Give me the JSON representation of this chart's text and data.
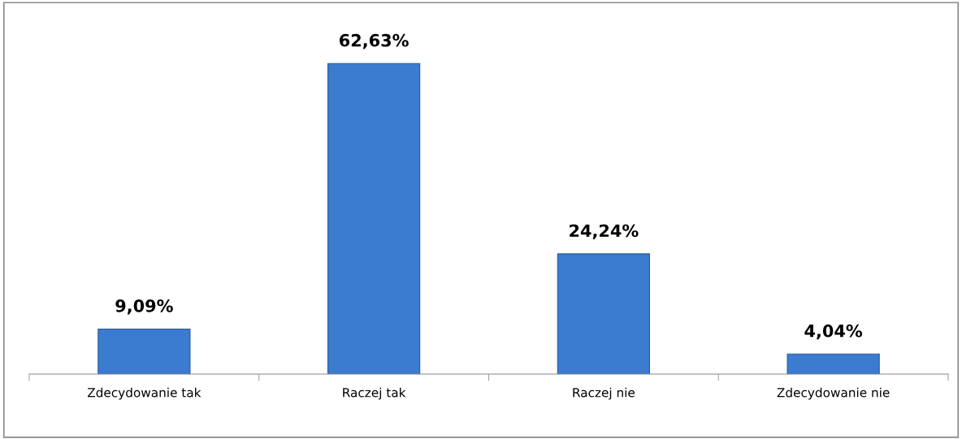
{
  "chart_data": {
    "type": "bar",
    "categories": [
      "Zdecydowanie tak",
      "Raczej tak",
      "Raczej nie",
      "Zdecydowanie nie"
    ],
    "values": [
      9.09,
      62.63,
      24.24,
      4.04
    ],
    "value_labels": [
      "9,09%",
      "62,63%",
      "24,24%",
      "4,04%"
    ],
    "color": "#3b7bd0",
    "grid": false,
    "legend": false
  }
}
